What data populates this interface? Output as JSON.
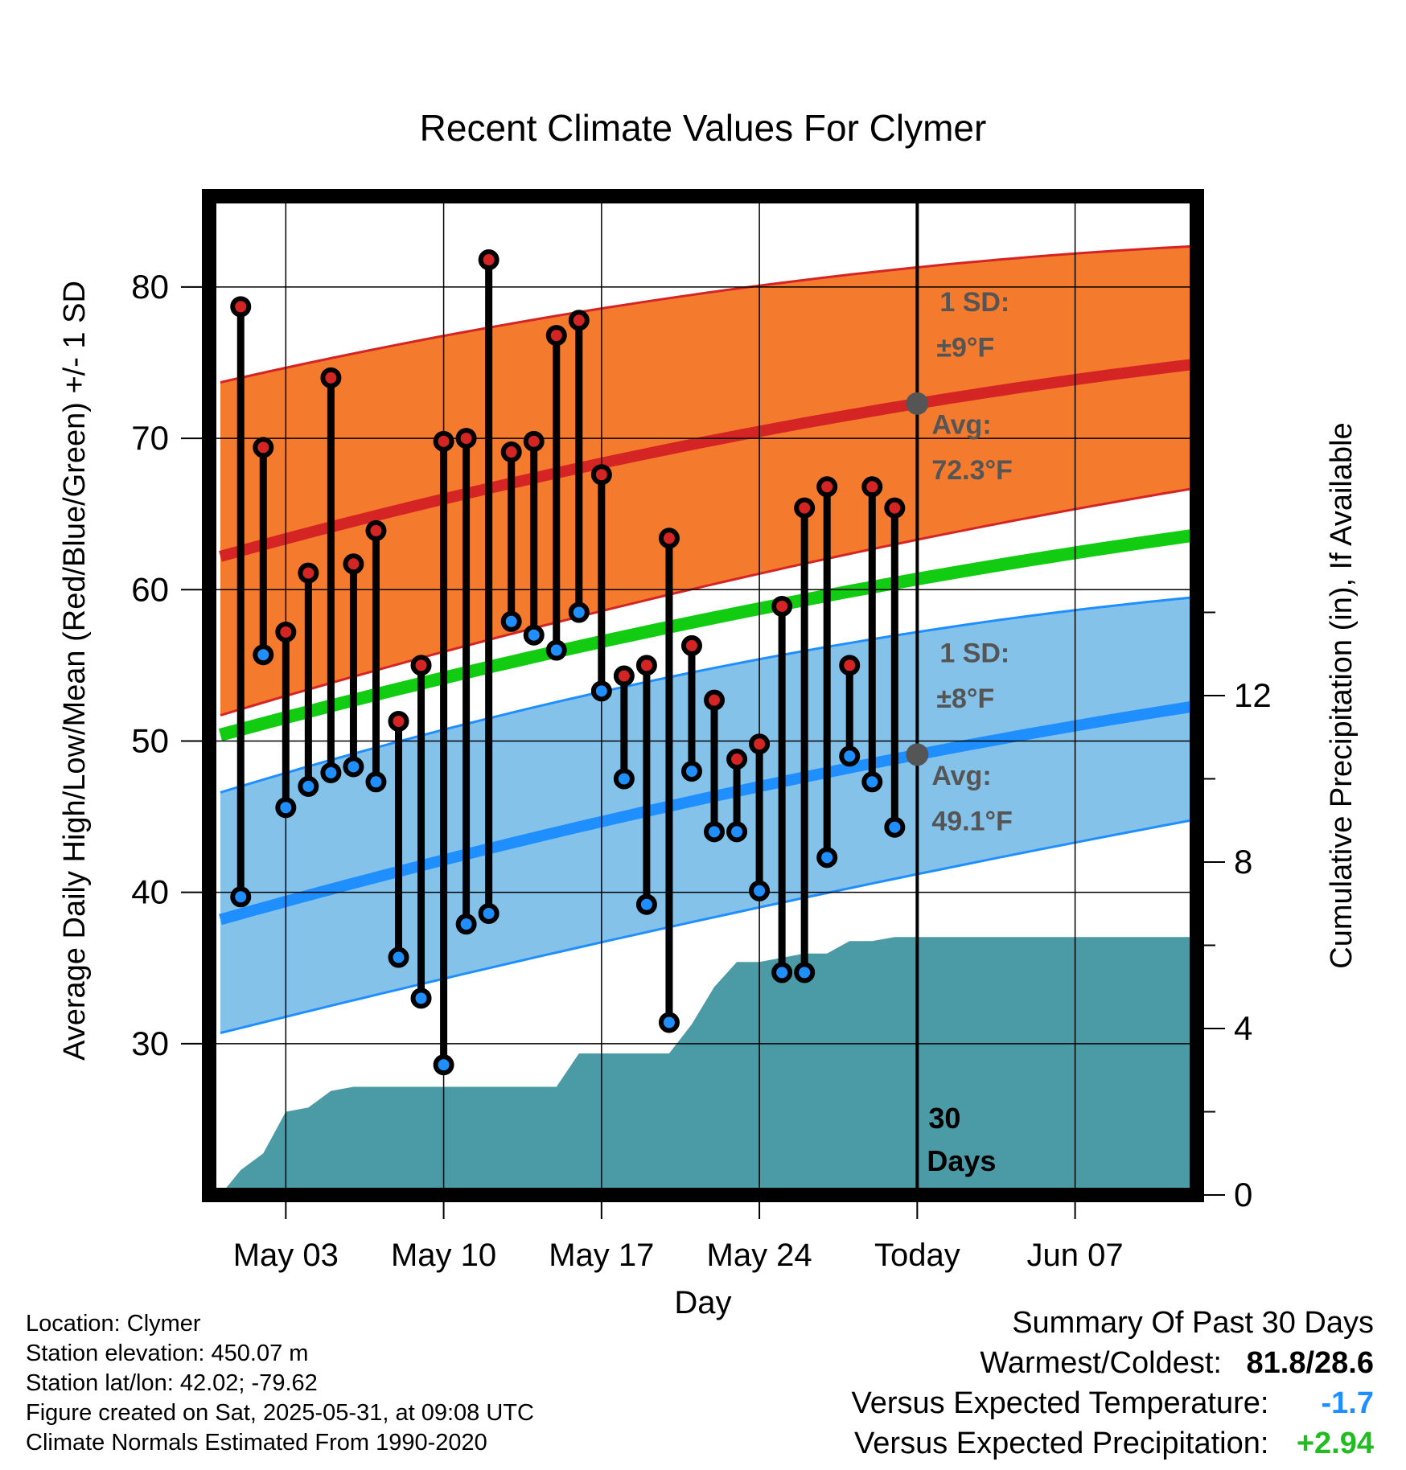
{
  "chart_data": {
    "type": "line",
    "title": "Recent Climate Values For Clymer",
    "xlabel": "Day",
    "ylabel": "Average Daily High/Low/Mean (Red/Blue/Green) +/- 1 SD",
    "ylabel2": "Cumulative Precipitation (in), If Available",
    "ylim": [
      20,
      86
    ],
    "y2lim": [
      0,
      24
    ],
    "xlim": [
      -3.4,
      40.4
    ],
    "y_ticks": [
      30,
      40,
      50,
      60,
      70,
      80
    ],
    "y2_ticks": [
      0,
      4,
      8,
      12
    ],
    "x_ticks": [
      {
        "day": 0,
        "label": "May 03"
      },
      {
        "day": 7,
        "label": "May 10"
      },
      {
        "day": 14,
        "label": "May 17"
      },
      {
        "day": 21,
        "label": "May 24"
      },
      {
        "day": 28,
        "label": "Today"
      },
      {
        "day": 35,
        "label": "Jun 07"
      }
    ],
    "today_day": 28,
    "days_label": [
      "30",
      "Days"
    ],
    "normal_high": {
      "x": [
        -2.9,
        28,
        40.3
      ],
      "mean": [
        62.2,
        72.3,
        74.9
      ],
      "upper": [
        73.7,
        81.3,
        82.7
      ],
      "lower": [
        51.7,
        63.3,
        66.7
      ]
    },
    "normal_low": {
      "x": [
        -2.9,
        28,
        40.3
      ],
      "mean": [
        38.2,
        49.1,
        52.3
      ],
      "upper": [
        46.6,
        57.2,
        59.5
      ],
      "lower": [
        30.7,
        41.2,
        44.8
      ]
    },
    "normal_mean": {
      "x": [
        -2.9,
        28,
        40.3
      ],
      "values": [
        50.4,
        60.7,
        63.6
      ]
    },
    "series": [
      {
        "name": "Daily High",
        "color": "#cc2222",
        "values": [
          78.7,
          69.4,
          57.2,
          61.1,
          74.0,
          61.7,
          63.9,
          51.3,
          55.0,
          69.8,
          70.0,
          81.8,
          69.1,
          69.8,
          76.8,
          77.8,
          67.6,
          54.3,
          55.0,
          63.4,
          56.3,
          52.7,
          48.8,
          49.8,
          58.9,
          65.4,
          66.8,
          55.0,
          66.8,
          65.4
        ]
      },
      {
        "name": "Daily Low",
        "color": "#1f8fff",
        "values": [
          39.7,
          55.7,
          45.6,
          47.0,
          47.9,
          48.3,
          47.3,
          35.7,
          33.0,
          28.6,
          37.9,
          38.6,
          57.9,
          57.0,
          56.0,
          58.5,
          53.3,
          47.5,
          39.2,
          31.4,
          48.0,
          44.0,
          44.0,
          40.1,
          34.7,
          34.7,
          42.3,
          49.0,
          47.3,
          44.3
        ]
      }
    ],
    "high_days": [
      -2,
      -1,
      0,
      1,
      2,
      3,
      4,
      5,
      6,
      7,
      8,
      9,
      10,
      11,
      12,
      13,
      14,
      15,
      16,
      17,
      18,
      19,
      20,
      21,
      22,
      23,
      24,
      25,
      26,
      27
    ],
    "precip_cumulative": {
      "x": [
        -2.9,
        -2,
        -1,
        0,
        1,
        2,
        3,
        4,
        5,
        6,
        7,
        8,
        9,
        10,
        11,
        12,
        13,
        14,
        15,
        16,
        17,
        18,
        19,
        20,
        21,
        22,
        23,
        24,
        25,
        26,
        27,
        28,
        40.3
      ],
      "values": [
        0.0,
        0.6,
        1.0,
        2.0,
        2.1,
        2.5,
        2.6,
        2.6,
        2.6,
        2.6,
        2.6,
        2.6,
        2.6,
        2.6,
        2.6,
        2.6,
        3.4,
        3.4,
        3.4,
        3.4,
        3.4,
        4.1,
        5.0,
        5.6,
        5.6,
        5.7,
        5.8,
        5.8,
        6.1,
        6.1,
        6.2,
        6.2,
        6.2
      ]
    },
    "annotations": {
      "high_sd": [
        "1 SD:",
        "±9°F"
      ],
      "high_avg": [
        "Avg:",
        "72.3°F"
      ],
      "low_sd": [
        "1 SD:",
        "±8°F"
      ],
      "low_avg": [
        "Avg:",
        "49.1°F"
      ]
    }
  },
  "colors": {
    "high_band": "#f47a2e",
    "high_line": "#d42424",
    "low_band": "#85c2ea",
    "low_line": "#1f8fff",
    "mean_line": "#11cc11",
    "precip": "#4a9ba6",
    "annotation": "#555555"
  },
  "info": {
    "location": "Location: Clymer",
    "elevation": "Station elevation: 450.07 m",
    "latlon": "Station lat/lon: 42.02; -79.62",
    "created": "Figure created on Sat, 2025-05-31, at 09:08 UTC",
    "normals": "Climate Normals Estimated From 1990-2020"
  },
  "summary": {
    "title": "Summary Of Past 30 Days",
    "warm_cold_label": "Warmest/Coldest:",
    "warm_cold_value": "81.8/28.6",
    "temp_label": "Versus Expected Temperature:",
    "temp_value": "-1.7",
    "precip_label": "Versus Expected Precipitation:",
    "precip_value": "+2.94"
  }
}
